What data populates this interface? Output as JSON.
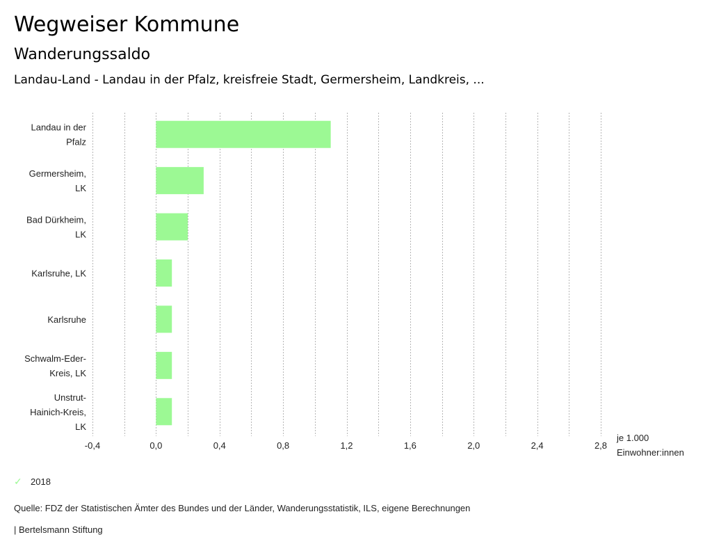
{
  "header": {
    "title": "Wegweiser Kommune",
    "subtitle": "Wanderungssaldo",
    "region": "Landau-Land - Landau in der Pfalz, kreisfreie Stadt, Germersheim, Landkreis, ..."
  },
  "chart_data": {
    "type": "bar",
    "orientation": "horizontal",
    "title": "Wanderungssaldo",
    "categories": [
      [
        "Landau in der",
        "Pfalz"
      ],
      [
        "Germersheim,",
        "LK"
      ],
      [
        "Bad Dürkheim,",
        "LK"
      ],
      [
        "Karlsruhe, LK"
      ],
      [
        "Karlsruhe"
      ],
      [
        "Schwalm-Eder-",
        "Kreis, LK"
      ],
      [
        "Unstrut-",
        "Hainich-Kreis,",
        "LK"
      ]
    ],
    "series": [
      {
        "name": "2018",
        "color": "#9cf994",
        "values": [
          1.1,
          0.3,
          0.2,
          0.1,
          0.1,
          0.1,
          0.1
        ]
      }
    ],
    "xlim": [
      -0.4,
      2.8
    ],
    "xticks": [
      -0.4,
      0.0,
      0.4,
      0.8,
      1.2,
      1.6,
      2.0,
      2.4,
      2.8
    ],
    "xtick_labels": [
      "-0,4",
      "0,0",
      "0,4",
      "0,8",
      "1,2",
      "1,6",
      "2,0",
      "2,4",
      "2,8"
    ],
    "grid_step": 0.2,
    "grid": true,
    "xlabel": [
      "je 1.000",
      "Einwohner:innen"
    ],
    "legend_position": "bottom-left"
  },
  "legend": {
    "items": [
      {
        "label": "2018",
        "icon": "check-icon",
        "color": "#9cf994"
      }
    ]
  },
  "footer": {
    "source": "Quelle: FDZ der Statistischen Ämter des Bundes und der Länder, Wanderungsstatistik, ILS, eigene Berechnungen",
    "brand": "| Bertelsmann Stiftung"
  }
}
